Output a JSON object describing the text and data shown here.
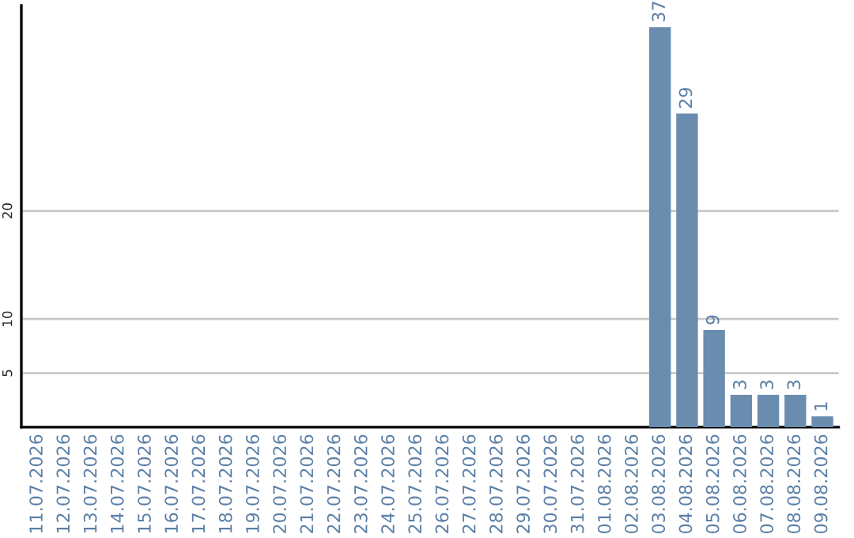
{
  "chart_data": {
    "type": "bar",
    "categories": [
      "11.07.2026",
      "12.07.2026",
      "13.07.2026",
      "14.07.2026",
      "15.07.2026",
      "16.07.2026",
      "17.07.2026",
      "18.07.2026",
      "19.07.2026",
      "20.07.2026",
      "21.07.2026",
      "22.07.2026",
      "23.07.2026",
      "24.07.2026",
      "25.07.2026",
      "26.07.2026",
      "27.07.2026",
      "28.07.2026",
      "29.07.2026",
      "30.07.2026",
      "31.07.2026",
      "01.08.2026",
      "02.08.2026",
      "03.08.2026",
      "04.08.2026",
      "05.08.2026",
      "06.08.2026",
      "07.08.2026",
      "08.08.2026",
      "09.08.2026"
    ],
    "values": [
      0,
      0,
      0,
      0,
      0,
      0,
      0,
      0,
      0,
      0,
      0,
      0,
      0,
      0,
      0,
      0,
      0,
      0,
      0,
      0,
      0,
      0,
      0,
      37,
      29,
      9,
      3,
      3,
      3,
      1
    ],
    "value_labels": [
      null,
      null,
      null,
      null,
      null,
      null,
      null,
      null,
      null,
      null,
      null,
      null,
      null,
      null,
      null,
      null,
      null,
      null,
      null,
      null,
      null,
      null,
      null,
      "37",
      "29",
      "9",
      "3",
      "3",
      "3",
      "1"
    ],
    "color": "#6a8caf",
    "ylim": [
      0,
      39
    ],
    "yticks": [
      5,
      10,
      20
    ],
    "grid": "y",
    "legend": false
  }
}
